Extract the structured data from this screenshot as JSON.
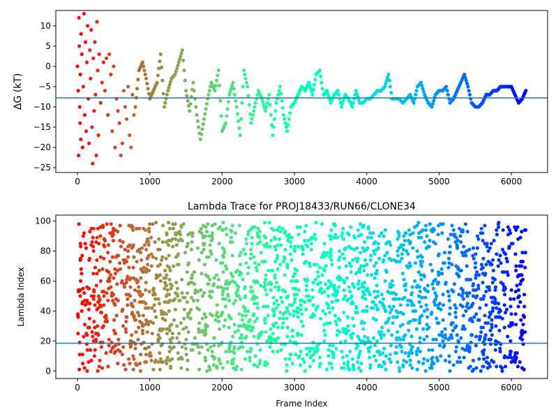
{
  "chart_data": [
    {
      "type": "scatter",
      "title": "",
      "xlabel": "",
      "ylabel": "ΔG (kT)",
      "xlim": [
        -300,
        6500
      ],
      "ylim": [
        -26.2,
        13.8
      ],
      "xticks": [
        0,
        1000,
        2000,
        3000,
        4000,
        5000,
        6000
      ],
      "yticks": [
        -25,
        -20,
        -15,
        -10,
        -5,
        0,
        5,
        10
      ],
      "hline": -7.8,
      "hline_color": "#1f77b4",
      "colormap": "rainbow (red at frame 0 → violet at last frame)",
      "n_frames": 6200,
      "series": [
        {
          "points": [
            [
              0,
              0
            ],
            [
              10,
              -6
            ],
            [
              15,
              -22
            ],
            [
              20,
              12
            ],
            [
              25,
              5
            ],
            [
              30,
              -10
            ],
            [
              35,
              -14
            ],
            [
              40,
              -2
            ],
            [
              45,
              -18
            ],
            [
              50,
              8
            ],
            [
              60,
              3
            ],
            [
              70,
              -20
            ],
            [
              80,
              -5
            ],
            [
              90,
              13
            ],
            [
              100,
              -12
            ],
            [
              110,
              6
            ],
            [
              120,
              -16
            ],
            [
              130,
              1
            ],
            [
              140,
              10
            ],
            [
              150,
              -8
            ],
            [
              160,
              -19
            ],
            [
              170,
              4
            ],
            [
              180,
              -3
            ],
            [
              190,
              9
            ],
            [
              200,
              -15
            ],
            [
              210,
              -24
            ],
            [
              220,
              2
            ],
            [
              230,
              -11
            ],
            [
              240,
              6
            ],
            [
              250,
              -7
            ],
            [
              260,
              -22
            ],
            [
              270,
              11
            ],
            [
              280,
              -1
            ],
            [
              290,
              -17
            ],
            [
              300,
              3
            ],
            [
              320,
              -9
            ],
            [
              340,
              -4
            ],
            [
              360,
              1
            ],
            [
              380,
              -6
            ],
            [
              400,
              2
            ],
            [
              420,
              -12
            ],
            [
              440,
              3
            ],
            [
              460,
              -2
            ],
            [
              480,
              -16
            ],
            [
              500,
              0
            ],
            [
              520,
              -20
            ],
            [
              540,
              -8
            ],
            [
              560,
              -11
            ],
            [
              580,
              -14
            ],
            [
              600,
              -22
            ],
            [
              620,
              -19
            ],
            [
              640,
              -6
            ],
            [
              660,
              -10
            ],
            [
              680,
              -13
            ],
            [
              700,
              -5
            ],
            [
              720,
              -17
            ],
            [
              740,
              -20
            ],
            [
              760,
              -7
            ],
            [
              780,
              -12
            ],
            [
              800,
              -10
            ],
            [
              850,
              -1
            ],
            [
              900,
              1
            ],
            [
              950,
              -3
            ],
            [
              1000,
              -8
            ],
            [
              1050,
              -6
            ],
            [
              1100,
              -4
            ],
            [
              1150,
              3
            ],
            [
              1200,
              -10
            ],
            [
              1250,
              -6
            ],
            [
              1300,
              -3
            ],
            [
              1350,
              -2
            ],
            [
              1400,
              1
            ],
            [
              1450,
              4
            ],
            [
              1500,
              -6
            ],
            [
              1550,
              -11
            ],
            [
              1600,
              -4
            ],
            [
              1650,
              -12
            ],
            [
              1700,
              -18
            ],
            [
              1750,
              -13
            ],
            [
              1800,
              -8
            ],
            [
              1850,
              -4
            ],
            [
              1900,
              -6
            ],
            [
              1950,
              -1
            ],
            [
              2000,
              -16
            ],
            [
              2050,
              -14
            ],
            [
              2100,
              -7
            ],
            [
              2150,
              -4
            ],
            [
              2200,
              -10
            ],
            [
              2250,
              -17
            ],
            [
              2300,
              -1
            ],
            [
              2350,
              -5
            ],
            [
              2400,
              -14
            ],
            [
              2450,
              -10
            ],
            [
              2500,
              -6
            ],
            [
              2550,
              -8
            ],
            [
              2600,
              -11
            ],
            [
              2650,
              -7
            ],
            [
              2700,
              -17
            ],
            [
              2750,
              -9
            ],
            [
              2800,
              -5
            ],
            [
              2850,
              -12
            ],
            [
              2900,
              -16
            ],
            [
              2950,
              -10
            ],
            [
              3000,
              -9
            ],
            [
              3050,
              -7
            ],
            [
              3100,
              -5
            ],
            [
              3150,
              -6
            ],
            [
              3200,
              -4
            ],
            [
              3250,
              -7
            ],
            [
              3300,
              -2
            ],
            [
              3350,
              -1
            ],
            [
              3400,
              -7
            ],
            [
              3450,
              -6
            ],
            [
              3500,
              -9
            ],
            [
              3550,
              -7
            ],
            [
              3600,
              -6
            ],
            [
              3650,
              -10
            ],
            [
              3700,
              -7
            ],
            [
              3750,
              -8
            ],
            [
              3800,
              -10
            ],
            [
              3850,
              -6
            ],
            [
              3900,
              -9
            ],
            [
              3950,
              -9
            ],
            [
              4000,
              -8
            ],
            [
              4050,
              -8
            ],
            [
              4100,
              -7
            ],
            [
              4150,
              -6
            ],
            [
              4200,
              -6
            ],
            [
              4250,
              -5
            ],
            [
              4300,
              -2
            ],
            [
              4350,
              -8
            ],
            [
              4400,
              -8
            ],
            [
              4450,
              -8
            ],
            [
              4500,
              -9
            ],
            [
              4550,
              -8
            ],
            [
              4600,
              -7
            ],
            [
              4650,
              -9
            ],
            [
              4700,
              -5
            ],
            [
              4750,
              -4
            ],
            [
              4800,
              -7
            ],
            [
              4850,
              -9
            ],
            [
              4900,
              -10
            ],
            [
              4950,
              -7
            ],
            [
              5000,
              -6
            ],
            [
              5050,
              -6
            ],
            [
              5100,
              -5
            ],
            [
              5150,
              -9
            ],
            [
              5200,
              -8
            ],
            [
              5250,
              -6
            ],
            [
              5300,
              -4
            ],
            [
              5350,
              -2
            ],
            [
              5400,
              -5
            ],
            [
              5450,
              -9
            ],
            [
              5500,
              -10
            ],
            [
              5550,
              -10
            ],
            [
              5600,
              -9
            ],
            [
              5650,
              -7
            ],
            [
              5700,
              -7
            ],
            [
              5750,
              -6
            ],
            [
              5800,
              -6
            ],
            [
              5850,
              -5
            ],
            [
              5900,
              -5
            ],
            [
              5950,
              -5
            ],
            [
              6000,
              -5
            ],
            [
              6050,
              -7
            ],
            [
              6100,
              -9
            ],
            [
              6150,
              -8
            ],
            [
              6200,
              -6
            ]
          ]
        }
      ]
    },
    {
      "type": "scatter",
      "title": "Lambda Trace for PROJ18433/RUN66/CLONE34",
      "xlabel": "Frame Index",
      "ylabel": "Lambda Index",
      "xlim": [
        -300,
        6500
      ],
      "ylim": [
        -5,
        104
      ],
      "xticks": [
        0,
        1000,
        2000,
        3000,
        4000,
        5000,
        6000
      ],
      "yticks": [
        0,
        20,
        40,
        60,
        80,
        100
      ],
      "hline": 18.5,
      "hline_color": "#1f77b4",
      "colormap": "rainbow (red at frame 0 → violet at last frame)",
      "n_frames": 6200,
      "n_points": 2200,
      "x_range": [
        0,
        6200
      ],
      "y_range": [
        0,
        99
      ]
    }
  ]
}
